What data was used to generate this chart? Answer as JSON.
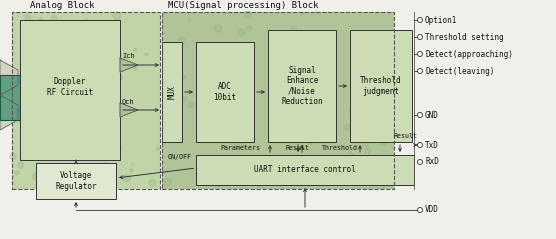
{
  "bg_color": "#f0f0eb",
  "pcb_color": "#b8cca0",
  "pcb_mcu_color": "#a8bc90",
  "box_fill": "#d0dfc0",
  "box_edge": "#333333",
  "dashed_color": "#555555",
  "arrow_color": "#333333",
  "text_color": "#111111",
  "title_analog": "Analog Block",
  "title_mcu": "MCU(Signal processing) Block",
  "block_labels": [
    "Doppler\nRF Circuit",
    "MUX",
    "ADC\n10bit",
    "Signal\nEnhance\n/Noise\nReduction",
    "Threshold\njudgment",
    "Voltage\nRegulator",
    "UART interface control"
  ],
  "signal_labels": [
    "Ich",
    "Qch"
  ],
  "connector_labels": [
    "Option1",
    "Threshold setting",
    "Detect(approaching)",
    "Detect(leaving)",
    "GND",
    "TxD",
    "RxD",
    "VDD"
  ],
  "small_labels": [
    "Threshold",
    "Result",
    "Parameters",
    "Result",
    "ON/OFF"
  ],
  "font_size_title": 6.5,
  "font_size_block": 5.5,
  "font_size_signal": 5.0,
  "font_size_connector": 5.5,
  "font_size_small": 4.8
}
